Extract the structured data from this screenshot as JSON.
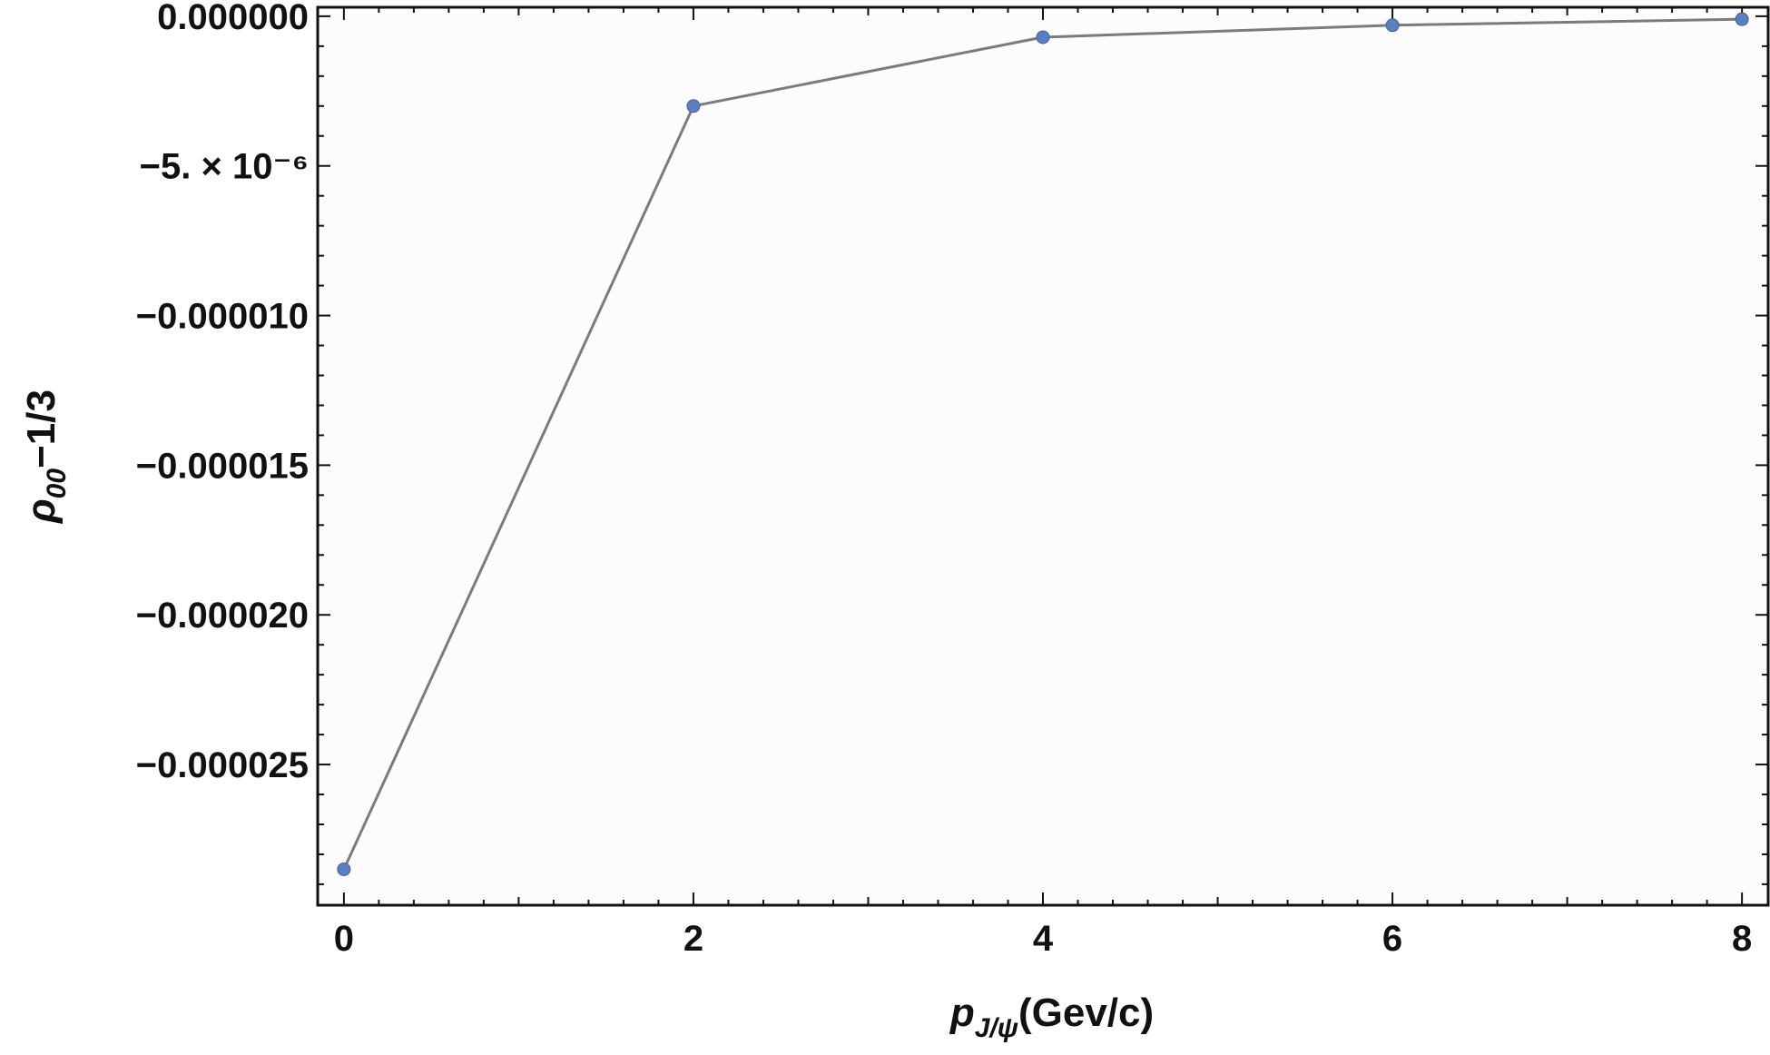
{
  "chart_data": {
    "type": "line",
    "xlabel": {
      "main": "p",
      "subscript": "J/ψ",
      "rest": "(Gev/c)"
    },
    "ylabel": {
      "main": "ρ",
      "subscript": "00",
      "rest": "−1/3"
    },
    "x_ticks": [
      "0",
      "2",
      "4",
      "6",
      "8"
    ],
    "x_tick_values": [
      0,
      2,
      4,
      6,
      8
    ],
    "y_ticks": [
      "0.000000",
      "−5. × 10⁻⁶",
      "−0.000010",
      "−0.000015",
      "−0.000020",
      "−0.000025"
    ],
    "y_tick_values": [
      0,
      -5e-06,
      -1e-05,
      -1.5e-05,
      -2e-05,
      -2.5e-05
    ],
    "xlim": [
      -0.15,
      8.15
    ],
    "ylim": [
      -2.97e-05,
      3e-07
    ],
    "grid": false,
    "series": [
      {
        "x": [
          0,
          2,
          4,
          6,
          8
        ],
        "y": [
          -2.85e-05,
          -3e-06,
          -7e-07,
          -3e-07,
          -1e-07
        ],
        "line_color": "#7b7b7b",
        "marker_color": "#5b7fc4"
      }
    ]
  }
}
